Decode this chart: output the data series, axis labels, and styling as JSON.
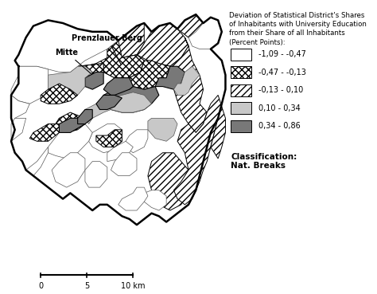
{
  "title_lines": [
    "Deviation of Statistical District's Shares",
    "of Inhabitants with University Education",
    "from their Share of all Inhabitants",
    "(Percent Points):"
  ],
  "legend_items": [
    {
      "label": "-1,09 - -0,47",
      "facecolor": "white",
      "hatch": "",
      "edgecolor": "#888888"
    },
    {
      "label": "-0,47 - -0,13",
      "facecolor": "white",
      "hatch": "xxxx",
      "edgecolor": "black"
    },
    {
      "label": "-0,13 - 0,10",
      "facecolor": "white",
      "hatch": "////",
      "edgecolor": "black"
    },
    {
      "label": "0,10 - 0,34",
      "facecolor": "#c8c8c8",
      "hatch": "",
      "edgecolor": "black"
    },
    {
      "label": "0,34 - 0,86",
      "facecolor": "#787878",
      "hatch": "",
      "edgecolor": "black"
    }
  ],
  "classification_text": "Classification:\nNat. Breaks",
  "background_color": "white",
  "figsize": [
    4.74,
    3.69
  ],
  "dpi": 100,
  "cat_map": [
    {
      "facecolor": "white",
      "hatch": "",
      "edgecolor": "#555555",
      "lw": 0.5
    },
    {
      "facecolor": "white",
      "hatch": "xxxx",
      "edgecolor": "black",
      "lw": 0.7
    },
    {
      "facecolor": "white",
      "hatch": "////",
      "edgecolor": "black",
      "lw": 0.7
    },
    {
      "facecolor": "#c8c8c8",
      "hatch": "",
      "edgecolor": "#555555",
      "lw": 0.5
    },
    {
      "facecolor": "#787878",
      "hatch": "",
      "edgecolor": "black",
      "lw": 0.8
    }
  ]
}
